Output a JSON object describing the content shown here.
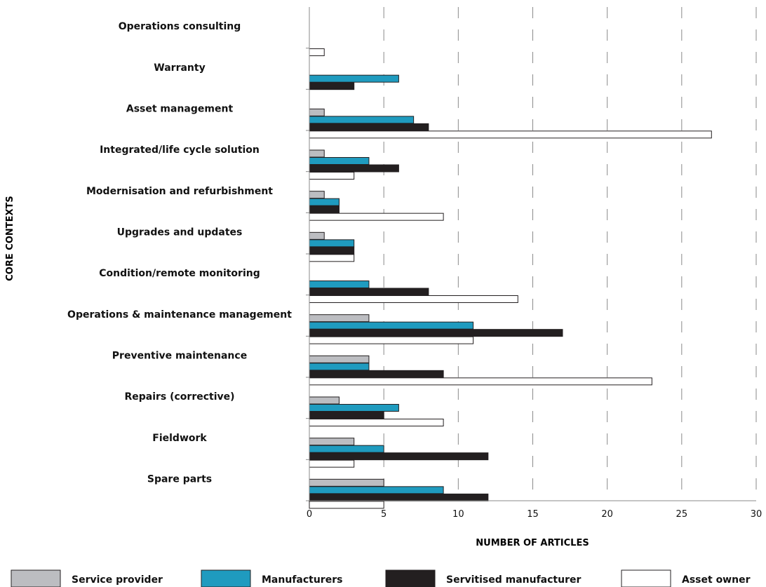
{
  "chart_data": {
    "type": "bar",
    "orientation": "horizontal",
    "ylabel": "CORE CONTEXTS",
    "xlabel": "NUMBER OF ARTICLES",
    "xlim": [
      0,
      30
    ],
    "xticks": [
      0,
      5,
      10,
      15,
      20,
      25,
      30
    ],
    "grid": "vertical dashed",
    "legend_position": "bottom",
    "categories": [
      "Operations consulting",
      "Warranty",
      "Asset management",
      "Integrated/life cycle solution",
      "Modernisation and refurbishment",
      "Upgrades and updates",
      "Condition/remote monitoring",
      "Operations & maintenance management",
      "Preventive maintenance",
      "Repairs (corrective)",
      "Fieldwork",
      "Spare parts"
    ],
    "series": [
      {
        "name": "Service provider",
        "color": "#bcbdc1",
        "values": [
          0,
          0,
          1,
          1,
          1,
          1,
          0,
          4,
          4,
          2,
          3,
          5
        ]
      },
      {
        "name": "Manufacturers",
        "color": "#1f9bbf",
        "values": [
          0,
          6,
          7,
          4,
          2,
          3,
          4,
          11,
          4,
          6,
          5,
          9
        ]
      },
      {
        "name": "Servitised manufacturer",
        "color": "#231f20",
        "values": [
          0,
          3,
          8,
          6,
          2,
          3,
          8,
          17,
          9,
          5,
          12,
          12
        ]
      },
      {
        "name": "Asset owner",
        "color": "#ffffff",
        "values": [
          1,
          0,
          27,
          3,
          9,
          3,
          14,
          11,
          23,
          9,
          3,
          5
        ]
      }
    ]
  }
}
